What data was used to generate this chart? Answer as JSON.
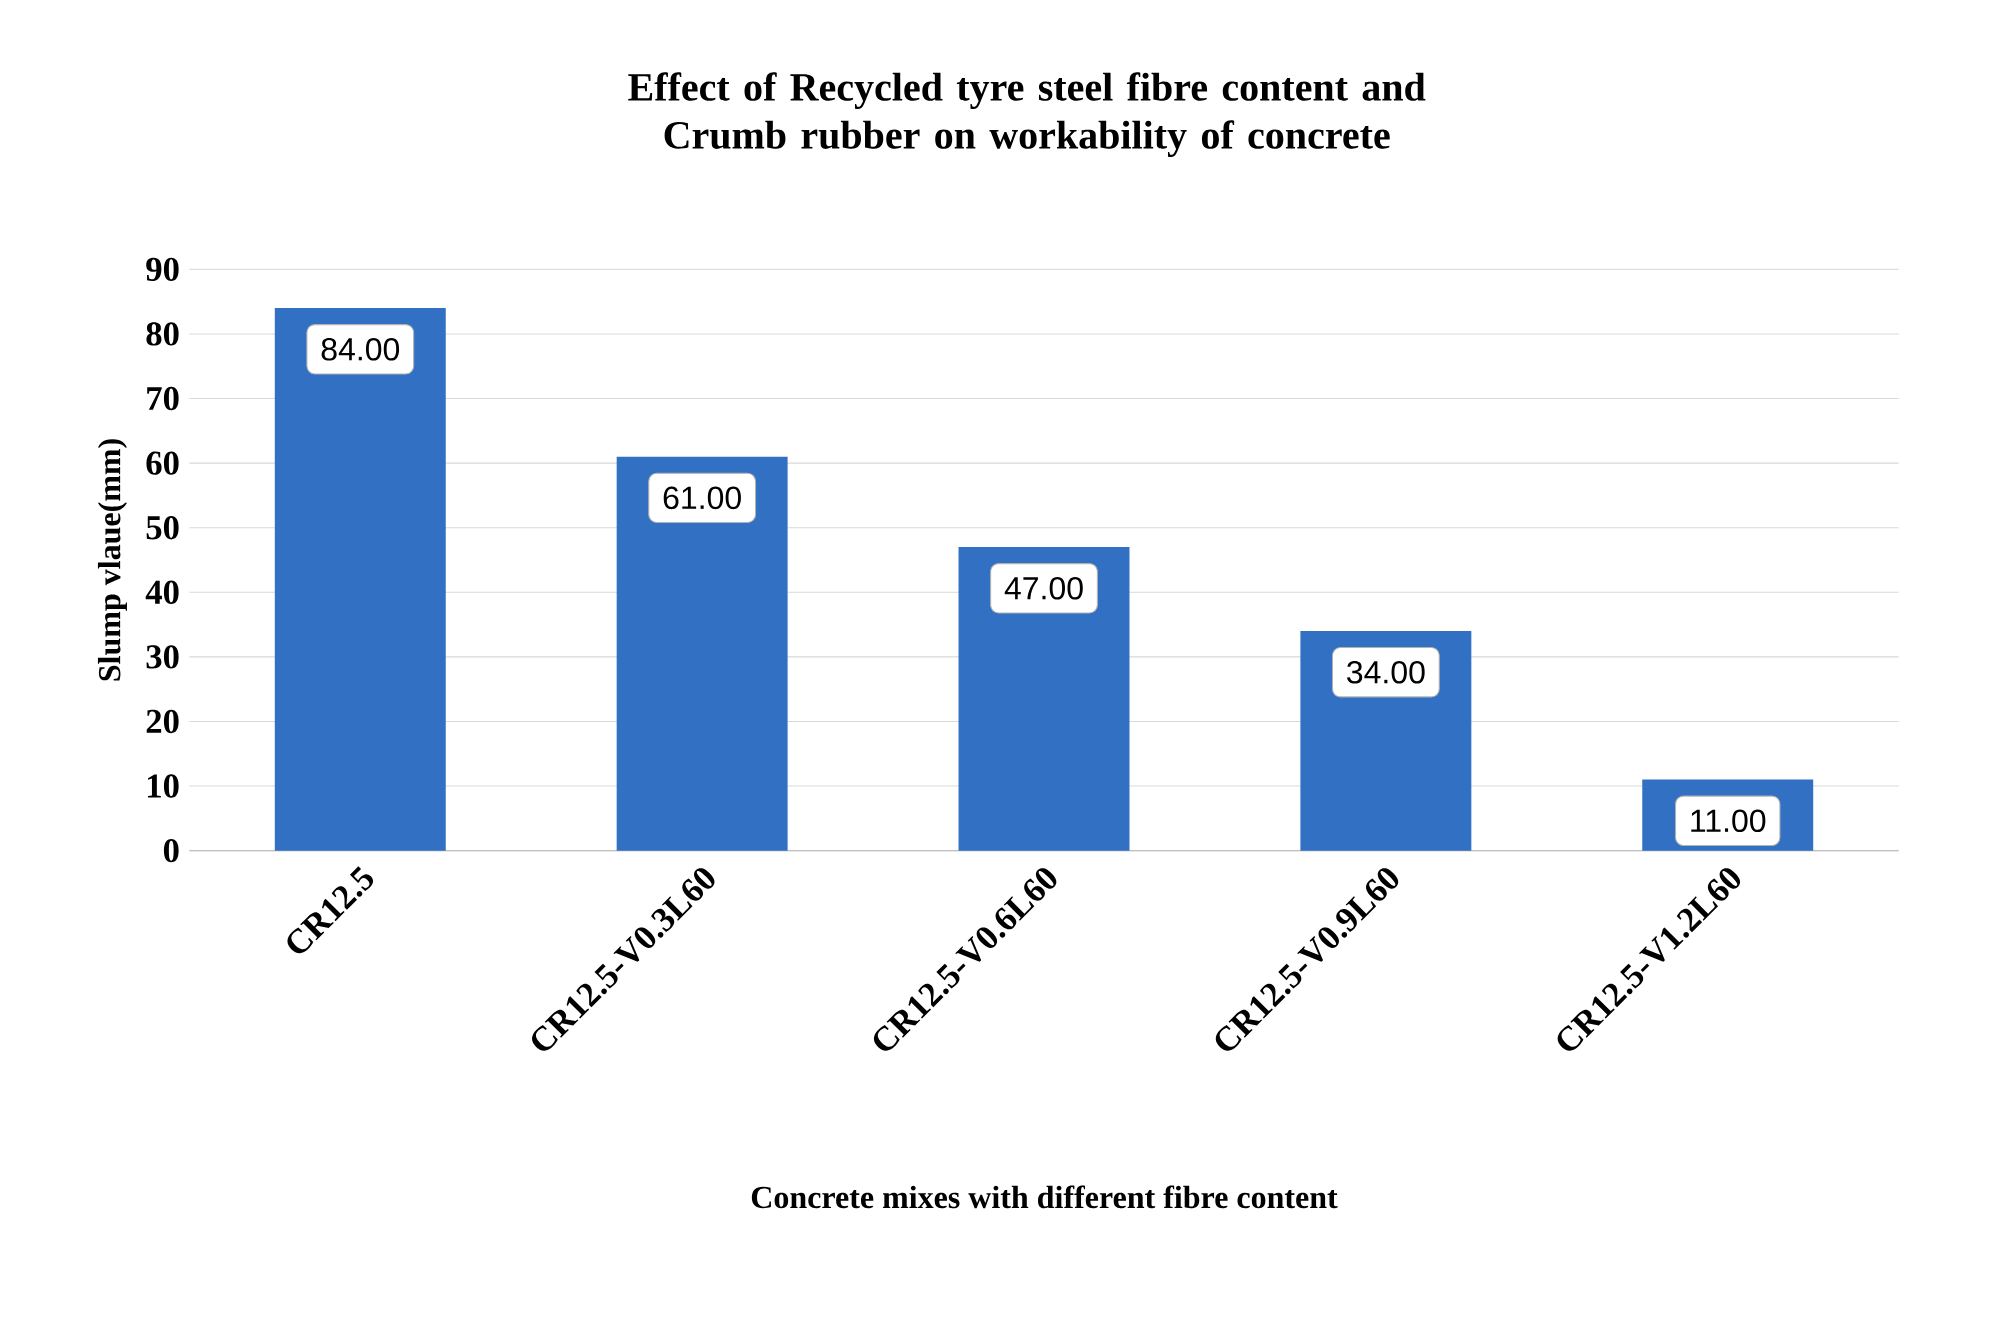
{
  "chart_data": {
    "type": "bar",
    "title": "Effect of Recycled tyre steel fibre content and Crumb rubber on workability of concrete",
    "xlabel": "Concrete mixes with different fibre content",
    "ylabel": "Slump vlaue(mm)",
    "categories": [
      "CR12.5",
      "CR12.5-V0.3L60",
      "CR12.5-V0.6L60",
      "CR12.5-V0.9L60",
      "CR12.5-V1.2L60"
    ],
    "values": [
      84,
      61,
      47,
      34,
      11
    ],
    "value_labels": [
      "84.00",
      "61.00",
      "47.00",
      "34.00",
      "11.00"
    ],
    "color": "#3170c2",
    "ylim": [
      0,
      90
    ],
    "yticks": [
      0,
      10,
      20,
      30,
      40,
      50,
      60,
      70,
      80,
      90
    ],
    "grid": "y"
  }
}
